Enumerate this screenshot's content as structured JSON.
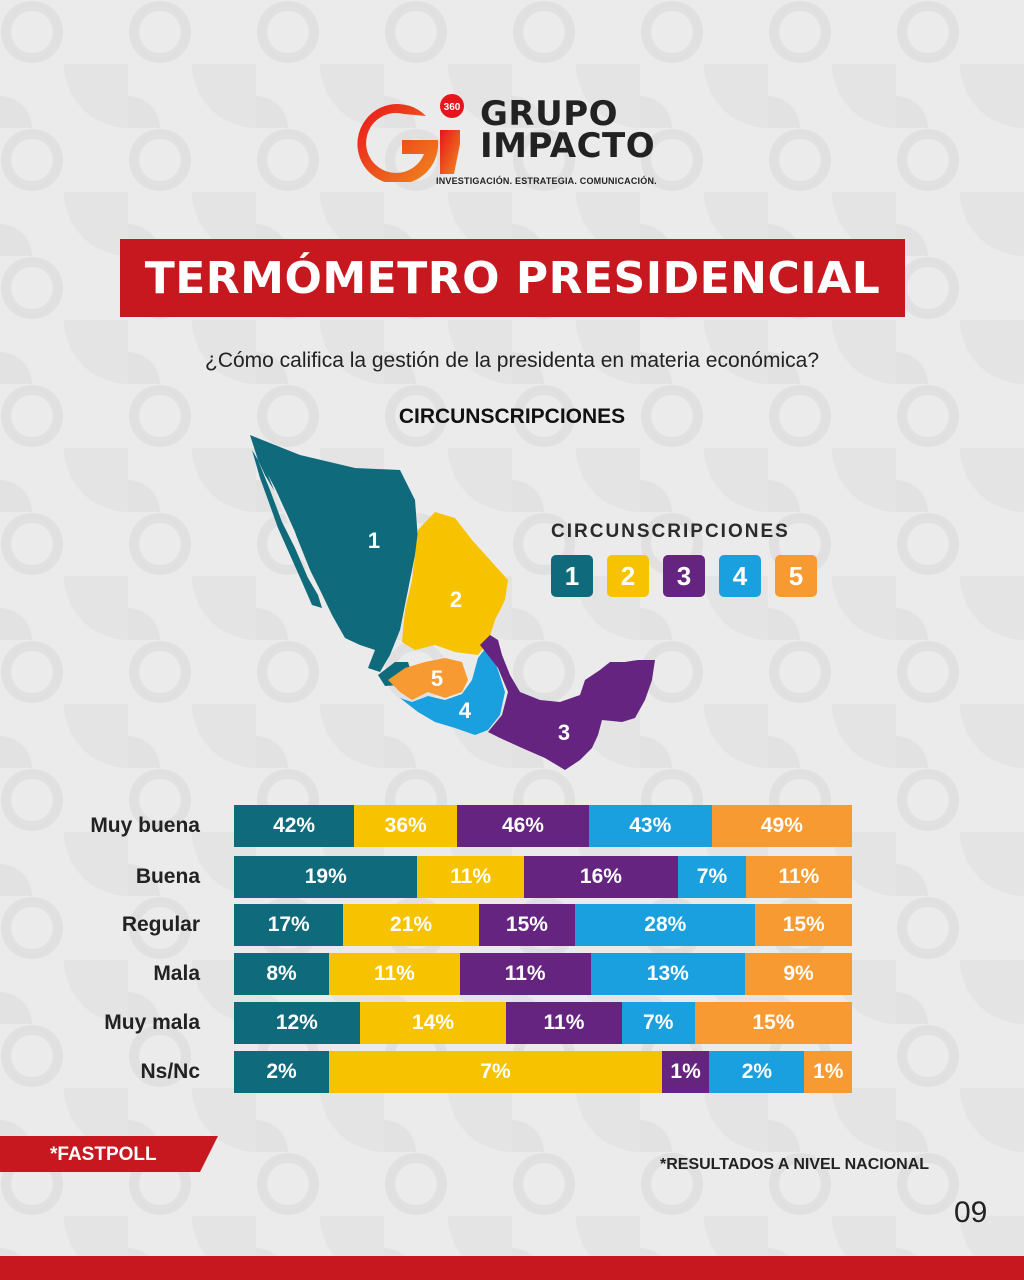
{
  "logo": {
    "badge": "360",
    "name_line1": "GRUPO",
    "name_line2": "IMPACTO",
    "tagline": "INVESTIGACIÓN. ESTRATEGIA. COMUNICACIÓN."
  },
  "title": "TERMÓMETRO PRESIDENCIAL",
  "question": "¿Cómo califica la gestión de la presidenta en materia económica?",
  "map": {
    "title": "CIRCUNSCRIPCIONES",
    "region_labels": [
      "1",
      "2",
      "3",
      "4",
      "5"
    ]
  },
  "legend": {
    "title": "CIRCUNSCRIPCIONES",
    "items": [
      {
        "label": "1",
        "color": "#0f6a7c"
      },
      {
        "label": "2",
        "color": "#f7c200"
      },
      {
        "label": "3",
        "color": "#64247f"
      },
      {
        "label": "4",
        "color": "#1aa0de"
      },
      {
        "label": "5",
        "color": "#f79a32"
      }
    ]
  },
  "chart_data": {
    "type": "bar",
    "orientation": "horizontal",
    "stacked": true,
    "categories": [
      "Muy buena",
      "Buena",
      "Regular",
      "Mala",
      "Muy mala",
      "Ns/Nc"
    ],
    "series": [
      {
        "name": "1",
        "color": "#0f6a7c",
        "values": [
          42,
          19,
          17,
          8,
          12,
          2
        ]
      },
      {
        "name": "2",
        "color": "#f7c200",
        "values": [
          36,
          11,
          21,
          11,
          14,
          7
        ]
      },
      {
        "name": "3",
        "color": "#64247f",
        "values": [
          46,
          16,
          15,
          11,
          11,
          1
        ]
      },
      {
        "name": "4",
        "color": "#1aa0de",
        "values": [
          43,
          7,
          28,
          13,
          7,
          2
        ]
      },
      {
        "name": "5",
        "color": "#f79a32",
        "values": [
          49,
          11,
          15,
          9,
          15,
          1
        ]
      }
    ],
    "value_suffix": "%"
  },
  "footer": {
    "fastpoll": "*FASTPOLL",
    "footnote": "*RESULTADOS A NIVEL NACIONAL",
    "page_number": "09"
  },
  "colors": {
    "brand_red": "#c8181f",
    "background": "#ebebeb"
  }
}
